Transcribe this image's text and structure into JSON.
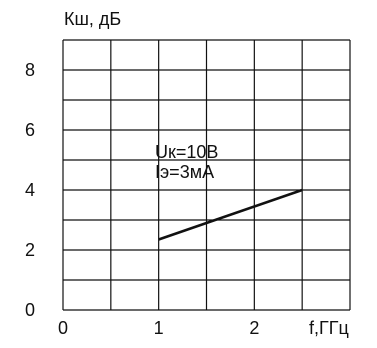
{
  "chart_data": {
    "type": "line",
    "ylabel": "Кш, дБ",
    "xlabel": "f,ГГц",
    "xlim": [
      0,
      3
    ],
    "ylim": [
      0,
      9
    ],
    "x_ticks": [
      {
        "value": 0,
        "label": "0"
      },
      {
        "value": 1,
        "label": "1"
      },
      {
        "value": 2,
        "label": "2"
      }
    ],
    "y_ticks": [
      {
        "value": 0,
        "label": "0"
      },
      {
        "value": 2,
        "label": "2"
      },
      {
        "value": 4,
        "label": "4"
      },
      {
        "value": 6,
        "label": "6"
      },
      {
        "value": 8,
        "label": "8"
      }
    ],
    "grid": true,
    "x_grid_step": 0.5,
    "y_grid_step": 1,
    "annotations": [
      "Uк=10В",
      "Iэ=3мА"
    ],
    "series": [
      {
        "x": [
          1.0,
          2.5
        ],
        "y": [
          2.35,
          4.0
        ],
        "color": "#111111"
      }
    ]
  }
}
